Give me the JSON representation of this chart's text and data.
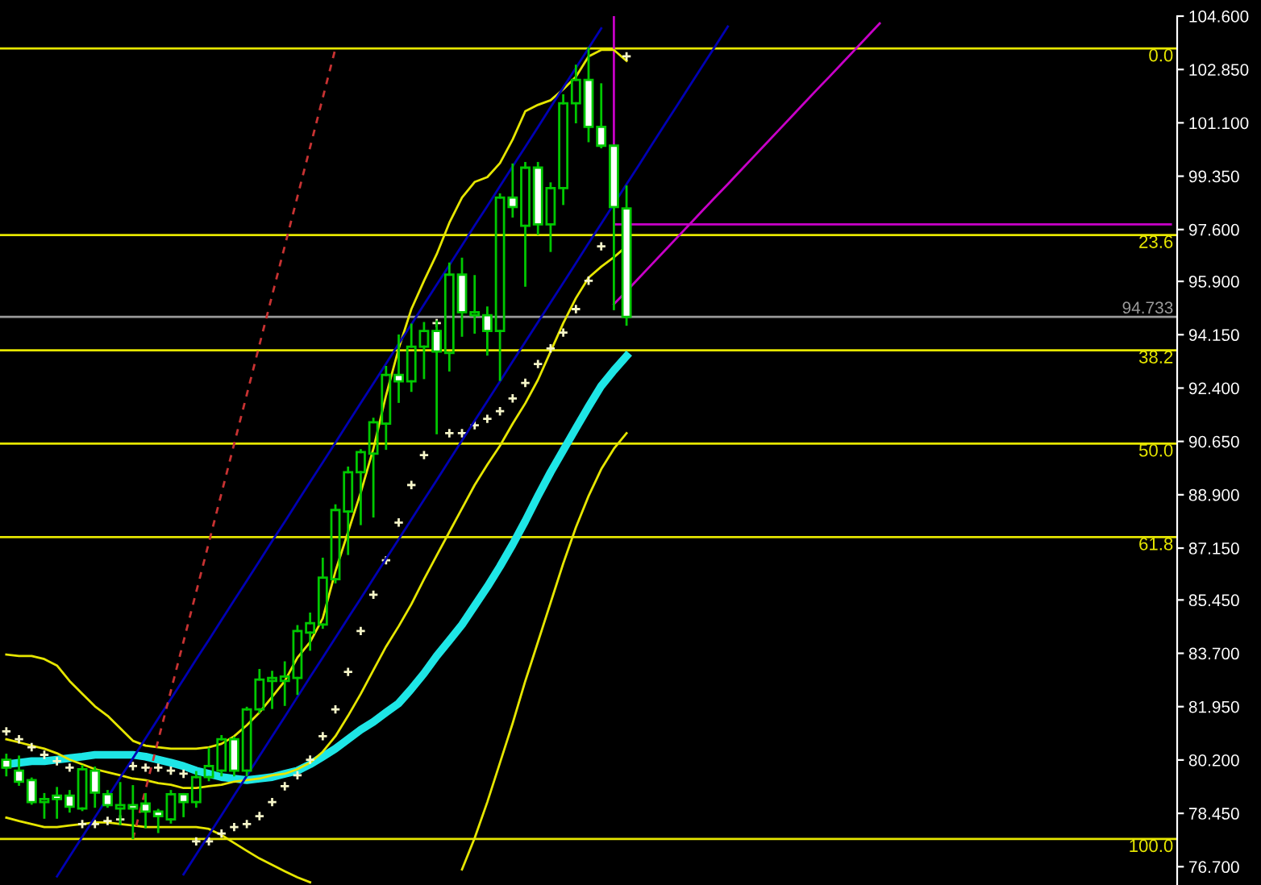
{
  "chart_data": {
    "type": "candlestick",
    "categories": [
      null,
      null,
      null,
      null,
      null,
      null,
      null,
      null,
      null,
      null,
      null,
      null,
      null,
      null,
      null,
      null,
      null,
      null,
      null,
      null,
      null,
      null,
      null,
      null,
      null,
      null,
      null,
      null,
      null,
      null,
      null,
      null,
      null,
      null,
      null,
      null,
      null,
      null,
      null,
      null,
      null,
      null,
      null,
      null,
      null,
      null,
      null,
      null,
      null,
      null,
      null,
      null,
      null,
      null,
      null,
      null,
      null,
      null,
      null,
      null,
      null,
      null,
      null,
      null,
      null,
      null,
      null,
      null,
      null,
      null,
      null,
      null,
      null,
      null,
      null,
      null,
      null,
      null,
      null,
      null,
      null,
      null,
      null,
      null,
      null,
      null,
      null,
      null,
      null,
      null,
      null,
      null,
      null
    ],
    "color": "#00c800",
    "colors": [
      "#ffffff",
      "#ffffff",
      "#ffffff",
      null,
      "#ffffff",
      "#ffffff",
      null,
      "#ffffff",
      "#ffffff",
      null,
      "#ffffff",
      "#ffffff",
      "#ffffff",
      null,
      "#ffffff",
      null,
      null,
      null,
      "#ffffff",
      null,
      null,
      null,
      null,
      null,
      null,
      null,
      null,
      null,
      null,
      null,
      null,
      "#ffffff",
      null,
      null,
      "#ffffff",
      null,
      "#ffffff",
      null,
      "#ffffff",
      null,
      "#ffffff",
      null,
      "#ffffff",
      null,
      null,
      null,
      "#ffffff",
      "#ffffff",
      "#ffffff",
      "#ffffff",
      null,
      null,
      null,
      null,
      null,
      null,
      null,
      null,
      null,
      null,
      null,
      null,
      null,
      null,
      null,
      null,
      null,
      null,
      null,
      null,
      null,
      null,
      null,
      null,
      null,
      null,
      null,
      null,
      null,
      null,
      null,
      null,
      null,
      null,
      null,
      null,
      null,
      null,
      null,
      null,
      null,
      null,
      null
    ],
    "ohlc": [
      [
        80.21,
        80.37,
        79.7,
        79.95
      ],
      [
        79.85,
        80.31,
        79.39,
        79.49
      ],
      [
        79.54,
        79.59,
        78.77,
        78.82
      ],
      [
        78.82,
        79.08,
        78.31,
        78.92
      ],
      [
        79.03,
        79.28,
        78.31,
        78.92
      ],
      [
        79.03,
        79.18,
        78.51,
        78.67
      ],
      [
        78.61,
        80.0,
        78.56,
        79.9
      ],
      [
        79.85,
        79.95,
        78.67,
        79.13
      ],
      [
        79.08,
        79.18,
        78.67,
        78.72
      ],
      [
        78.61,
        79.44,
        78.1,
        78.72
      ],
      [
        78.72,
        79.34,
        77.64,
        78.61
      ],
      [
        78.77,
        79.08,
        78.0,
        78.51
      ],
      [
        78.51,
        78.56,
        77.84,
        78.36
      ],
      [
        78.25,
        79.18,
        78.15,
        79.08
      ],
      [
        79.08,
        79.08,
        78.36,
        78.82
      ],
      [
        78.82,
        79.8,
        78.67,
        79.64
      ],
      [
        79.64,
        80.57,
        79.54,
        80.0
      ],
      [
        79.85,
        80.98,
        79.7,
        80.88
      ],
      [
        80.88,
        80.93,
        79.7,
        79.85
      ],
      [
        79.85,
        81.91,
        79.7,
        81.86
      ],
      [
        81.86,
        83.15,
        81.76,
        82.84
      ],
      [
        82.79,
        83.09,
        81.91,
        82.89
      ],
      [
        82.79,
        83.4,
        82.01,
        82.94
      ],
      [
        82.89,
        84.59,
        82.37,
        84.43
      ],
      [
        84.38,
        85.0,
        83.82,
        84.69
      ],
      [
        84.64,
        86.8,
        84.54,
        86.18
      ],
      [
        86.13,
        88.55,
        86.03,
        88.4
      ],
      [
        88.35,
        89.79,
        86.96,
        89.64
      ],
      [
        89.64,
        90.36,
        87.94,
        90.3
      ],
      [
        90.25,
        91.39,
        88.19,
        91.28
      ],
      [
        91.23,
        93.09,
        90.41,
        92.83
      ],
      [
        92.83,
        94.12,
        91.95,
        92.62
      ],
      [
        92.62,
        94.48,
        92.31,
        93.76
      ],
      [
        93.76,
        94.53,
        92.73,
        94.27
      ],
      [
        94.27,
        94.58,
        90.92,
        93.6
      ],
      [
        93.55,
        96.48,
        92.98,
        96.12
      ],
      [
        96.12,
        96.64,
        94.12,
        94.89
      ],
      [
        94.79,
        96.07,
        94.22,
        94.89
      ],
      [
        94.79,
        95.04,
        93.5,
        94.27
      ],
      [
        94.27,
        98.75,
        92.67,
        98.65
      ],
      [
        98.65,
        99.73,
        98.03,
        98.34
      ],
      [
        97.72,
        99.78,
        95.76,
        99.63
      ],
      [
        99.63,
        99.78,
        97.46,
        97.77
      ],
      [
        97.77,
        99.11,
        96.9,
        98.96
      ],
      [
        98.96,
        102.0,
        98.44,
        101.74
      ],
      [
        101.74,
        102.97,
        101.12,
        102.51
      ],
      [
        102.51,
        103.54,
        100.5,
        100.97
      ],
      [
        100.97,
        102.36,
        100.3,
        100.35
      ],
      [
        100.35,
        100.35,
        94.99,
        98.34
      ],
      [
        98.29,
        99.01,
        94.48,
        94.733
      ],
      null,
      null,
      null,
      null,
      null,
      null,
      null,
      null,
      null,
      null,
      null,
      null,
      null,
      null,
      null,
      null,
      null,
      null,
      null,
      null,
      null,
      null,
      null,
      null,
      null,
      null,
      null,
      null,
      null,
      null,
      null,
      null,
      null,
      null,
      null,
      null,
      null,
      null,
      null,
      null,
      null,
      null,
      null
    ],
    "series": [
      {
        "type": "line",
        "color": "#1ee6e6",
        "values": [
          80.06,
          80.11,
          80.16,
          80.16,
          80.21,
          80.26,
          80.31,
          80.37,
          80.37,
          80.37,
          80.37,
          80.31,
          80.21,
          80.11,
          80.0,
          79.85,
          79.75,
          79.64,
          79.59,
          79.54,
          79.59,
          79.64,
          79.75,
          79.85,
          80.06,
          80.31,
          80.57,
          80.88,
          81.19,
          81.45,
          81.76,
          82.06,
          82.53,
          83.04,
          83.61,
          84.12,
          84.64,
          85.26,
          85.88,
          86.55,
          87.27,
          88.04,
          88.86,
          89.64,
          90.36,
          91.08,
          91.79,
          92.47,
          92.98,
          93.45,
          null,
          null,
          null,
          null,
          null,
          null,
          null,
          null,
          null,
          null,
          null,
          null,
          null,
          null,
          null,
          null,
          null,
          null,
          null,
          null,
          null,
          null,
          null,
          null,
          null,
          null,
          null,
          null,
          null,
          null,
          null,
          null,
          null,
          null,
          null,
          null,
          null,
          null,
          null,
          null,
          null,
          null,
          null
        ]
      },
      {
        "type": "line",
        "color": "#e6e600",
        "values": [
          83.66,
          83.61,
          83.61,
          83.51,
          83.3,
          82.79,
          82.37,
          81.96,
          81.65,
          81.24,
          80.83,
          80.67,
          80.62,
          80.57,
          80.57,
          80.57,
          80.62,
          80.73,
          80.98,
          81.34,
          81.76,
          82.27,
          82.79,
          83.56,
          84.07,
          84.85,
          86.39,
          87.68,
          88.97,
          90.41,
          92.16,
          93.7,
          94.99,
          95.92,
          96.79,
          97.82,
          98.65,
          99.16,
          99.32,
          99.78,
          100.55,
          101.48,
          101.69,
          101.84,
          102.2,
          102.61,
          103.28,
          103.49,
          103.49,
          103.13,
          null,
          null,
          null,
          null,
          null,
          null,
          null,
          null,
          null,
          null,
          null,
          null,
          null,
          null,
          null,
          null,
          null,
          null,
          null,
          null,
          null,
          null,
          null,
          null,
          null,
          null,
          null,
          null,
          null,
          null,
          null,
          null,
          null,
          null,
          null,
          null,
          null,
          null,
          null,
          null,
          null,
          null,
          null
        ]
      },
      {
        "type": "line",
        "color": "#e6e600",
        "values": [
          80.88,
          80.78,
          80.67,
          80.57,
          80.42,
          80.21,
          80.06,
          79.9,
          79.8,
          79.7,
          79.59,
          79.54,
          79.44,
          79.39,
          79.28,
          79.28,
          79.34,
          79.39,
          79.49,
          79.54,
          79.59,
          79.7,
          79.75,
          79.9,
          80.11,
          80.47,
          80.98,
          81.65,
          82.37,
          83.15,
          83.92,
          84.59,
          85.31,
          86.13,
          86.91,
          87.68,
          88.45,
          89.22,
          89.89,
          90.51,
          91.23,
          91.9,
          92.67,
          93.6,
          94.53,
          95.35,
          96.02,
          96.38,
          96.69,
          97.05,
          null,
          null,
          null,
          null,
          null,
          null,
          null,
          null,
          null,
          null,
          null,
          null,
          null,
          null,
          null,
          null,
          null,
          null,
          null,
          null,
          null,
          null,
          null,
          null,
          null,
          null,
          null,
          null,
          null,
          null,
          null,
          null,
          null,
          null,
          null,
          null,
          null,
          null,
          null,
          null,
          null,
          null,
          null
        ]
      },
      {
        "type": "line",
        "color": "#e6e600",
        "values": [
          78.31,
          78.2,
          78.1,
          78.0,
          78.0,
          78.05,
          78.1,
          78.15,
          78.15,
          78.1,
          78.05,
          78.0,
          78.0,
          78.0,
          78.0,
          78.0,
          77.94,
          77.74,
          77.48,
          77.22,
          76.97,
          76.76,
          76.55,
          76.35,
          76.19,
          null,
          null,
          null,
          null,
          null,
          null,
          null,
          null,
          null,
          null,
          null,
          76.61,
          77.64,
          78.82,
          80.11,
          81.4,
          82.79,
          84.07,
          85.36,
          86.65,
          87.83,
          88.86,
          89.74,
          90.41,
          90.92,
          null,
          null,
          null,
          null,
          null,
          null,
          null,
          null,
          null,
          null,
          null,
          null,
          null,
          null,
          null,
          null,
          null,
          null,
          null,
          null,
          null,
          null,
          null,
          null,
          null,
          null,
          null,
          null,
          null,
          null,
          null,
          null,
          null,
          null,
          null,
          null,
          null,
          null,
          null,
          null,
          null,
          null,
          null
        ]
      },
      {
        "type": "scatter",
        "color": "#f5f5c8",
        "marker": "cross",
        "values": [
          81.14,
          80.88,
          80.62,
          80.37,
          80.16,
          79.95,
          78.1,
          78.1,
          78.2,
          78.25,
          80.0,
          79.95,
          79.95,
          79.85,
          79.75,
          77.53,
          77.53,
          77.79,
          78.0,
          78.1,
          78.36,
          78.82,
          79.34,
          79.7,
          80.21,
          80.98,
          81.86,
          83.09,
          84.43,
          85.62,
          86.75,
          87.99,
          89.22,
          90.2,
          94.53,
          90.92,
          90.92,
          91.18,
          91.39,
          91.64,
          92.06,
          92.57,
          93.19,
          93.7,
          94.22,
          94.99,
          95.92,
          97.05,
          null,
          103.28,
          null,
          null,
          null,
          null,
          null,
          null,
          null,
          null,
          null,
          null,
          null,
          null,
          null,
          null,
          null,
          null,
          null,
          null,
          null,
          null,
          null,
          null,
          null,
          null,
          null,
          null,
          null,
          null,
          null,
          null,
          null,
          null,
          null,
          null,
          null,
          null,
          null,
          null,
          null,
          null,
          null,
          null,
          null
        ]
      },
      {
        "type": "line",
        "color": "#0000b4",
        "values": [
          null,
          null,
          null,
          null,
          76.38,
          77.03,
          77.68,
          78.32,
          78.97,
          79.62,
          80.26,
          80.91,
          81.56,
          82.2,
          82.85,
          83.5,
          84.14,
          84.79,
          85.44,
          86.08,
          86.73,
          87.38,
          88.02,
          88.67,
          89.32,
          89.96,
          90.61,
          91.26,
          91.91,
          92.55,
          93.2,
          93.85,
          94.49,
          95.14,
          95.79,
          96.43,
          97.08,
          97.73,
          98.37,
          99.02,
          99.67,
          100.31,
          100.96,
          101.61,
          102.26,
          102.9,
          103.55,
          104.2,
          null,
          null,
          null,
          null,
          null,
          null,
          null,
          null,
          null,
          null,
          null,
          null,
          null,
          null,
          null,
          null,
          null,
          null,
          null,
          null,
          null,
          null,
          null,
          null,
          null,
          null,
          null,
          null,
          null,
          null,
          null,
          null,
          null,
          null,
          null,
          null,
          null,
          null,
          null,
          null,
          null,
          null,
          null,
          null,
          null
        ]
      },
      {
        "type": "line",
        "color": "#0000b4",
        "values": [
          null,
          null,
          null,
          null,
          null,
          null,
          null,
          null,
          null,
          null,
          null,
          null,
          null,
          null,
          76.45,
          77.1,
          77.74,
          78.39,
          79.04,
          79.68,
          80.33,
          80.98,
          81.62,
          82.27,
          82.92,
          83.56,
          84.21,
          84.86,
          85.5,
          86.15,
          86.8,
          87.44,
          88.09,
          88.74,
          89.38,
          90.03,
          90.68,
          91.33,
          91.97,
          92.62,
          93.27,
          93.91,
          94.56,
          95.21,
          95.85,
          96.5,
          97.15,
          97.79,
          98.44,
          99.09,
          99.73,
          100.38,
          101.03,
          101.67,
          102.32,
          102.97,
          103.61,
          104.26,
          null,
          null,
          null,
          null,
          null,
          null,
          null,
          null,
          null,
          null,
          null,
          null,
          null,
          null,
          null,
          null,
          null,
          null,
          null,
          null,
          null,
          null,
          null,
          null,
          null,
          null,
          null,
          null,
          null,
          null,
          null,
          null,
          null,
          null,
          null
        ]
      },
      {
        "type": "line",
        "color": "#c83232",
        "line_style": "dashed",
        "values": [
          null,
          null,
          null,
          null,
          null,
          null,
          null,
          null,
          null,
          null,
          77.61,
          79.23,
          80.85,
          82.47,
          84.09,
          85.71,
          87.33,
          88.95,
          90.57,
          92.19,
          93.82,
          95.44,
          97.06,
          98.68,
          100.3,
          101.92,
          103.54,
          null,
          null,
          null,
          null,
          null,
          null,
          null,
          null,
          null,
          null,
          null,
          null,
          null,
          null,
          null,
          null,
          null,
          null,
          null,
          null,
          null,
          null,
          null,
          null,
          null,
          null,
          null,
          null,
          null,
          null,
          null,
          null,
          null,
          null,
          null,
          null,
          null,
          null,
          null,
          null,
          null,
          null,
          null,
          null,
          null,
          null,
          null,
          null,
          null,
          null,
          null,
          null,
          null,
          null,
          null,
          null,
          null,
          null,
          null,
          null,
          null,
          null,
          null,
          null,
          null,
          null
        ]
      },
      {
        "type": "line",
        "color": "#c800c8",
        "values": [
          null,
          null,
          null,
          null,
          null,
          null,
          null,
          null,
          null,
          null,
          null,
          null,
          null,
          null,
          null,
          null,
          null,
          null,
          null,
          null,
          null,
          null,
          null,
          null,
          null,
          null,
          null,
          null,
          null,
          null,
          null,
          null,
          null,
          null,
          null,
          null,
          null,
          null,
          null,
          null,
          null,
          null,
          null,
          null,
          null,
          null,
          null,
          null,
          97.77,
          97.77,
          97.77,
          97.77,
          97.77,
          97.77,
          97.77,
          97.77,
          97.77,
          97.77,
          97.77,
          97.77,
          97.77,
          97.77,
          97.77,
          97.77,
          97.77,
          97.77,
          97.77,
          97.77,
          97.77,
          97.77,
          97.77,
          97.77,
          97.77,
          97.77,
          97.77,
          97.77,
          97.77,
          97.77,
          97.77,
          97.77,
          97.77,
          97.77,
          97.77,
          97.77,
          97.77,
          97.77,
          97.77,
          97.77,
          97.77,
          97.77,
          97.77,
          97.77,
          97.77
        ]
      },
      {
        "type": "line",
        "color": "#c800c8",
        "values": [
          null,
          null,
          null,
          null,
          null,
          null,
          null,
          null,
          null,
          null,
          null,
          null,
          null,
          null,
          null,
          null,
          null,
          null,
          null,
          null,
          null,
          null,
          null,
          null,
          null,
          null,
          null,
          null,
          null,
          null,
          null,
          null,
          null,
          null,
          null,
          null,
          null,
          null,
          null,
          null,
          null,
          null,
          null,
          null,
          null,
          null,
          null,
          null,
          95.15,
          95.58,
          96.02,
          96.46,
          96.9,
          97.34,
          97.78,
          98.22,
          98.66,
          99.09,
          99.53,
          99.97,
          100.41,
          100.85,
          101.29,
          101.73,
          102.17,
          102.6,
          103.04,
          103.48,
          103.92,
          104.36,
          null,
          null,
          null,
          null,
          null,
          null,
          null,
          null,
          null,
          null,
          null,
          null,
          null,
          null,
          null,
          null,
          null,
          null,
          null,
          null,
          null,
          null,
          null
        ]
      }
    ],
    "ref_lines": [
      {
        "axis": "y",
        "value": 103.54,
        "color": "#e6e600"
      },
      {
        "axis": "y",
        "value": 97.42,
        "color": "#e6e600"
      },
      {
        "axis": "y",
        "value": 93.64,
        "color": "#e6e600"
      },
      {
        "axis": "y",
        "value": 90.58,
        "color": "#e6e600"
      },
      {
        "axis": "y",
        "value": 87.51,
        "color": "#e6e600"
      },
      {
        "axis": "y",
        "value": 77.61,
        "color": "#e6e600"
      },
      {
        "axis": "y",
        "value": 94.733,
        "label": "94.733",
        "color": "#9a9a9a"
      }
    ],
    "annotations": [
      {
        "text": "0.0",
        "y": 103.54
      },
      {
        "text": "23.6",
        "y": 97.42
      },
      {
        "text": "38.2",
        "y": 93.64
      },
      {
        "text": "50.0",
        "y": 90.58
      },
      {
        "text": "61.8",
        "y": 87.51
      },
      {
        "text": "100.0",
        "y": 77.61
      }
    ],
    "ylim": [
      76.1,
      104.6
    ],
    "yticks": [
      {
        "value": 104.6,
        "label": "104.600"
      },
      {
        "value": 102.85,
        "label": "102.850"
      },
      {
        "value": 101.1,
        "label": "101.100"
      },
      {
        "value": 99.35,
        "label": "99.350"
      },
      {
        "value": 97.6,
        "label": "97.600"
      },
      {
        "value": 95.9,
        "label": "95.900"
      },
      {
        "value": 94.15,
        "label": "94.150"
      },
      {
        "value": 92.4,
        "label": "92.400"
      },
      {
        "value": 90.65,
        "label": "90.650"
      },
      {
        "value": 88.9,
        "label": "88.900"
      },
      {
        "value": 87.15,
        "label": "87.150"
      },
      {
        "value": 85.45,
        "label": "85.450"
      },
      {
        "value": 83.7,
        "label": "83.700"
      },
      {
        "value": 81.95,
        "label": "81.950"
      },
      {
        "value": 80.2,
        "label": "80.200"
      },
      {
        "value": 78.45,
        "label": "78.450"
      },
      {
        "value": 76.7,
        "label": "76.700"
      }
    ],
    "tick_labels": "y"
  }
}
